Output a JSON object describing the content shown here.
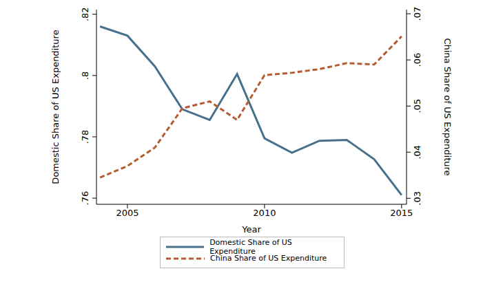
{
  "chart_data": {
    "type": "line",
    "x_label": "Year",
    "y_label": "Domestic Share of US Expenditure",
    "y2_label": "China Share of US Expenditure",
    "x": [
      2004,
      2005,
      2006,
      2007,
      2008,
      2009,
      2010,
      2011,
      2012,
      2013,
      2014,
      2015
    ],
    "series": [
      {
        "name": "Domestic Share of US Expenditure",
        "color": "#46708c",
        "line_style": "solid",
        "axis": "y",
        "values": [
          0.816,
          0.813,
          0.803,
          0.789,
          0.7855,
          0.8005,
          0.7795,
          0.7748,
          0.7787,
          0.779,
          0.7727,
          0.761
        ]
      },
      {
        "name": "China Share of US Expenditure",
        "color": "#b65a31",
        "line_style": "dashed",
        "axis": "y2",
        "values": [
          0.0345,
          0.037,
          0.041,
          0.0495,
          0.051,
          0.047,
          0.0567,
          0.0572,
          0.058,
          0.0593,
          0.059,
          0.0651
        ]
      }
    ],
    "xlim": [
      2003.87,
      2015.18
    ],
    "xticks": [
      2005,
      2010,
      2015
    ],
    "ylim": [
      0.758,
      0.8215
    ],
    "yticks": [
      {
        "value": 0.76,
        "label": ".76"
      },
      {
        "value": 0.78,
        "label": ".78"
      },
      {
        "value": 0.8,
        "label": ".8"
      },
      {
        "value": 0.82,
        "label": ".82"
      }
    ],
    "y2lim": [
      0.0287,
      0.0709
    ],
    "y2ticks": [
      {
        "value": 0.03,
        "label": ".03"
      },
      {
        "value": 0.04,
        "label": ".04"
      },
      {
        "value": 0.05,
        "label": ".05"
      },
      {
        "value": 0.06,
        "label": ".06"
      },
      {
        "value": 0.07,
        "label": ".07"
      }
    ],
    "grid": false,
    "legend": "bottom"
  }
}
